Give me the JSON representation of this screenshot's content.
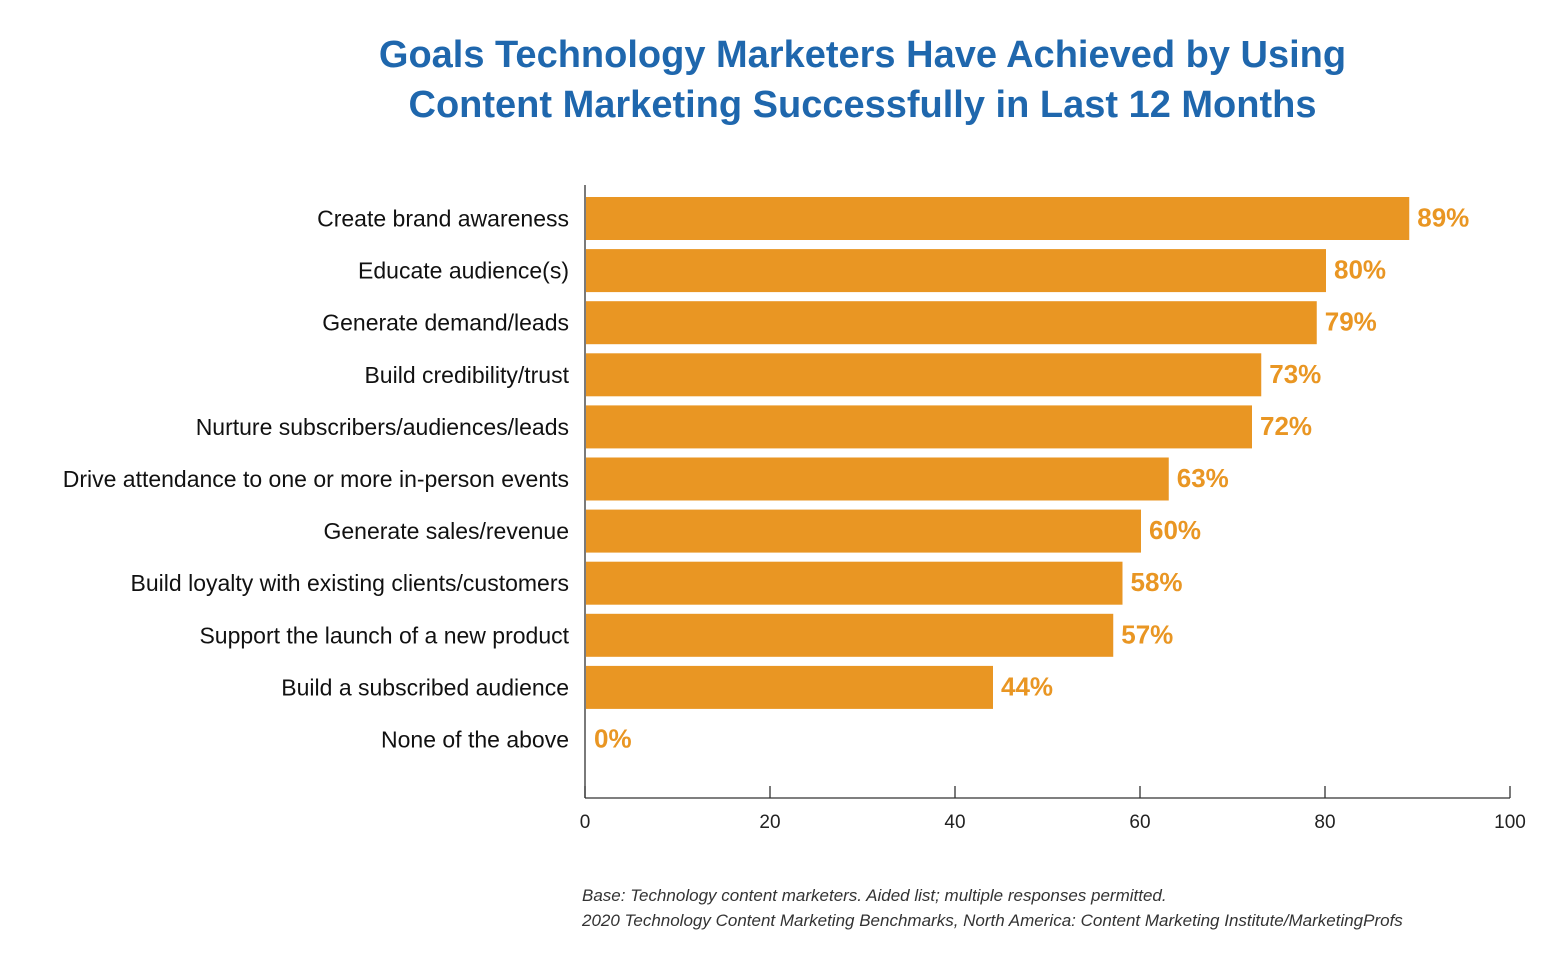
{
  "title_lines": [
    "Goals Technology Marketers Have Achieved by Using",
    "Content Marketing Successfully in Last 12 Months"
  ],
  "colors": {
    "title": "#1f67ad",
    "bar": "#e99623",
    "value_label": "#e99623",
    "axis": "#333333"
  },
  "chart_data": {
    "type": "bar",
    "orientation": "horizontal",
    "categories": [
      "Create brand awareness",
      "Educate audience(s)",
      "Generate demand/leads",
      "Build credibility/trust",
      "Nurture subscribers/audiences/leads",
      "Drive attendance to one or more in-person events",
      "Generate sales/revenue",
      "Build loyalty with existing clients/customers",
      "Support the launch of a new product",
      "Build a subscribed audience",
      "None of the above"
    ],
    "values": [
      89,
      80,
      79,
      73,
      72,
      63,
      60,
      58,
      57,
      44,
      0
    ],
    "value_labels": [
      "89%",
      "80%",
      "79%",
      "73%",
      "72%",
      "63%",
      "60%",
      "58%",
      "57%",
      "44%",
      "0%"
    ],
    "xlim": [
      0,
      100
    ],
    "xticks": [
      0,
      20,
      40,
      60,
      80,
      100
    ],
    "xlabel": "",
    "ylabel": "",
    "grid": false,
    "legend": false
  },
  "footnotes": [
    "Base: Technology content marketers. Aided list; multiple responses permitted.",
    "2020 Technology Content Marketing Benchmarks, North America: Content Marketing Institute/MarketingProfs"
  ]
}
